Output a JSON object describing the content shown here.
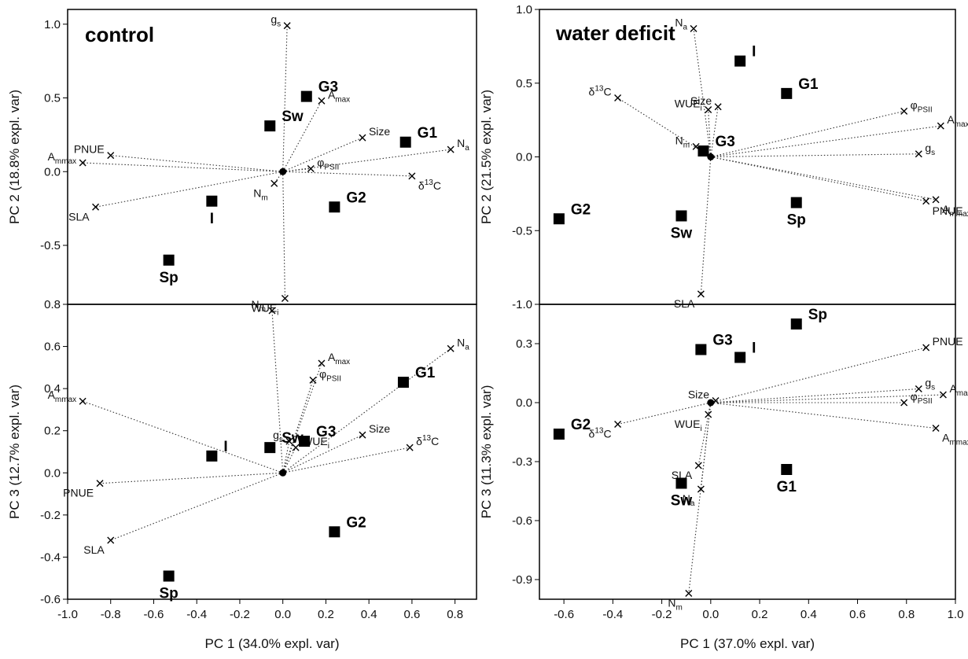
{
  "figure": {
    "xlabel_left": "PC 1 (34.0% expl. var)",
    "xlabel_right": "PC 1 (37.0% expl. var)"
  },
  "chart_data": [
    {
      "type": "scatter",
      "title": "control",
      "xlabel": "",
      "ylabel": "PC 2 (18.8% expl. var)",
      "xlim": [
        -1.0,
        0.9
      ],
      "ylim": [
        -0.9,
        1.1
      ],
      "yticks": [
        "1.0",
        "0.5",
        "0.0",
        "-0.5"
      ],
      "ytick_values": [
        1.0,
        0.5,
        0.0,
        -0.5
      ],
      "xticks": [],
      "xtick_values": [],
      "grid": false,
      "variables": [
        {
          "label": "g_s",
          "x": 0.02,
          "y": 0.99
        },
        {
          "label": "A_max",
          "x": 0.18,
          "y": 0.48
        },
        {
          "label": "Size",
          "x": 0.37,
          "y": 0.23
        },
        {
          "label": "N_a",
          "x": 0.78,
          "y": 0.15
        },
        {
          "label": "PNUE",
          "x": -0.8,
          "y": 0.11
        },
        {
          "label": "A_mmax",
          "x": -0.93,
          "y": 0.06
        },
        {
          "label": "φ_PSII",
          "x": 0.13,
          "y": 0.02
        },
        {
          "label": "δ13C",
          "x": 0.6,
          "y": -0.03
        },
        {
          "label": "N_m",
          "x": -0.04,
          "y": -0.08
        },
        {
          "label": "SLA",
          "x": -0.87,
          "y": -0.24
        },
        {
          "label": "WUE_i",
          "x": 0.01,
          "y": -0.86
        }
      ],
      "groups": [
        {
          "label": "G3",
          "x": 0.11,
          "y": 0.51
        },
        {
          "label": "Sw",
          "x": -0.06,
          "y": 0.31
        },
        {
          "label": "G1",
          "x": 0.57,
          "y": 0.2
        },
        {
          "label": "I",
          "x": -0.33,
          "y": -0.2
        },
        {
          "label": "G2",
          "x": 0.24,
          "y": -0.24
        },
        {
          "label": "Sp",
          "x": -0.53,
          "y": -0.6
        }
      ]
    },
    {
      "type": "scatter",
      "title": "water deficit",
      "xlabel": "",
      "ylabel": "PC 2 (21.5% expl. var)",
      "xlim": [
        -0.7,
        1.0
      ],
      "ylim": [
        -1.0,
        1.0
      ],
      "yticks": [
        "1.0",
        "0.5",
        "0.0",
        "-0.5",
        "-1.0"
      ],
      "ytick_values": [
        1.0,
        0.5,
        0.0,
        -0.5,
        -1.0
      ],
      "xticks": [],
      "xtick_values": [],
      "grid": false,
      "variables": [
        {
          "label": "N_a",
          "x": -0.07,
          "y": 0.87
        },
        {
          "label": "δ13C",
          "x": -0.38,
          "y": 0.4
        },
        {
          "label": "WUE_i",
          "x": -0.01,
          "y": 0.32
        },
        {
          "label": "Size",
          "x": 0.03,
          "y": 0.34
        },
        {
          "label": "φ_PSII",
          "x": 0.79,
          "y": 0.31
        },
        {
          "label": "A_max",
          "x": 0.94,
          "y": 0.21
        },
        {
          "label": "g_s",
          "x": 0.85,
          "y": 0.02
        },
        {
          "label": "N_m",
          "x": -0.06,
          "y": 0.07
        },
        {
          "label": "A_mmax",
          "x": 0.92,
          "y": -0.29
        },
        {
          "label": "PNUE",
          "x": 0.88,
          "y": -0.3
        },
        {
          "label": "SLA",
          "x": -0.04,
          "y": -0.93
        }
      ],
      "groups": [
        {
          "label": "I",
          "x": 0.12,
          "y": 0.65
        },
        {
          "label": "G1",
          "x": 0.31,
          "y": 0.43
        },
        {
          "label": "G3",
          "x": -0.03,
          "y": 0.04
        },
        {
          "label": "Sp",
          "x": 0.35,
          "y": -0.31
        },
        {
          "label": "Sw",
          "x": -0.12,
          "y": -0.4
        },
        {
          "label": "G2",
          "x": -0.62,
          "y": -0.42
        }
      ]
    },
    {
      "type": "scatter",
      "title": "",
      "xlabel": "PC 1 (34.0% expl. var)",
      "ylabel": "PC 3 (12.7% expl. var)",
      "xlim": [
        -1.0,
        0.9
      ],
      "ylim": [
        -0.6,
        0.8
      ],
      "yticks": [
        "0.8",
        "0.6",
        "0.4",
        "0.2",
        "0.0",
        "-0.2",
        "-0.4",
        "-0.6"
      ],
      "ytick_values": [
        0.8,
        0.6,
        0.4,
        0.2,
        0.0,
        -0.2,
        -0.4,
        -0.6
      ],
      "xticks": [
        "-1.0",
        "-0.8",
        "-0.6",
        "-0.4",
        "-0.2",
        "0.0",
        "0.2",
        "0.4",
        "0.6",
        "0.8"
      ],
      "xtick_values": [
        -1.0,
        -0.8,
        -0.6,
        -0.4,
        -0.2,
        0.0,
        0.2,
        0.4,
        0.6,
        0.8
      ],
      "grid": false,
      "variables": [
        {
          "label": "N_m",
          "x": -0.05,
          "y": 0.77
        },
        {
          "label": "N_a",
          "x": 0.78,
          "y": 0.59
        },
        {
          "label": "A_max",
          "x": 0.18,
          "y": 0.52
        },
        {
          "label": "φ_PSII",
          "x": 0.14,
          "y": 0.44
        },
        {
          "label": "A_mmax",
          "x": -0.93,
          "y": 0.34
        },
        {
          "label": "g_s",
          "x": 0.03,
          "y": 0.15
        },
        {
          "label": "Size",
          "x": 0.37,
          "y": 0.18
        },
        {
          "label": "WUE_i",
          "x": 0.06,
          "y": 0.12
        },
        {
          "label": "δ13C",
          "x": 0.59,
          "y": 0.12
        },
        {
          "label": "PNUE",
          "x": -0.85,
          "y": -0.05
        },
        {
          "label": "SLA",
          "x": -0.8,
          "y": -0.32
        }
      ],
      "groups": [
        {
          "label": "G1",
          "x": 0.56,
          "y": 0.43
        },
        {
          "label": "G3",
          "x": 0.1,
          "y": 0.15
        },
        {
          "label": "Sw",
          "x": -0.06,
          "y": 0.12
        },
        {
          "label": "I",
          "x": -0.33,
          "y": 0.08
        },
        {
          "label": "G2",
          "x": 0.24,
          "y": -0.28
        },
        {
          "label": "Sp",
          "x": -0.53,
          "y": -0.49
        }
      ]
    },
    {
      "type": "scatter",
      "title": "",
      "xlabel": "PC 1 (37.0% expl. var)",
      "ylabel": "PC 3 (11.3% expl. var)",
      "xlim": [
        -0.7,
        1.0
      ],
      "ylim": [
        -1.0,
        0.5
      ],
      "yticks": [
        "0.3",
        "0.0",
        "-0.3",
        "-0.6",
        "-0.9"
      ],
      "ytick_values": [
        0.3,
        0.0,
        -0.3,
        -0.6,
        -0.9
      ],
      "xticks": [
        "-0.6",
        "-0.4",
        "-0.2",
        "0.0",
        "0.2",
        "0.4",
        "0.6",
        "0.8",
        "1.0"
      ],
      "xtick_values": [
        -0.6,
        -0.4,
        -0.2,
        0.0,
        0.2,
        0.4,
        0.6,
        0.8,
        1.0
      ],
      "grid": false,
      "variables": [
        {
          "label": "PNUE",
          "x": 0.88,
          "y": 0.28
        },
        {
          "label": "g_s",
          "x": 0.85,
          "y": 0.07
        },
        {
          "label": "A_max",
          "x": 0.95,
          "y": 0.04
        },
        {
          "label": "Size",
          "x": 0.02,
          "y": 0.01
        },
        {
          "label": "φ_PSII",
          "x": 0.79,
          "y": 0.0
        },
        {
          "label": "A_mmax",
          "x": 0.92,
          "y": -0.13
        },
        {
          "label": "δ13C",
          "x": -0.38,
          "y": -0.11
        },
        {
          "label": "WUE_i",
          "x": -0.01,
          "y": -0.06
        },
        {
          "label": "SLA",
          "x": -0.05,
          "y": -0.32
        },
        {
          "label": "N_a",
          "x": -0.04,
          "y": -0.44
        },
        {
          "label": "N_m",
          "x": -0.09,
          "y": -0.97
        }
      ],
      "groups": [
        {
          "label": "Sp",
          "x": 0.35,
          "y": 0.4
        },
        {
          "label": "G3",
          "x": -0.04,
          "y": 0.27
        },
        {
          "label": "I",
          "x": 0.12,
          "y": 0.23
        },
        {
          "label": "G2",
          "x": -0.62,
          "y": -0.16
        },
        {
          "label": "G1",
          "x": 0.31,
          "y": -0.34
        },
        {
          "label": "Sw",
          "x": -0.12,
          "y": -0.41
        }
      ]
    }
  ]
}
